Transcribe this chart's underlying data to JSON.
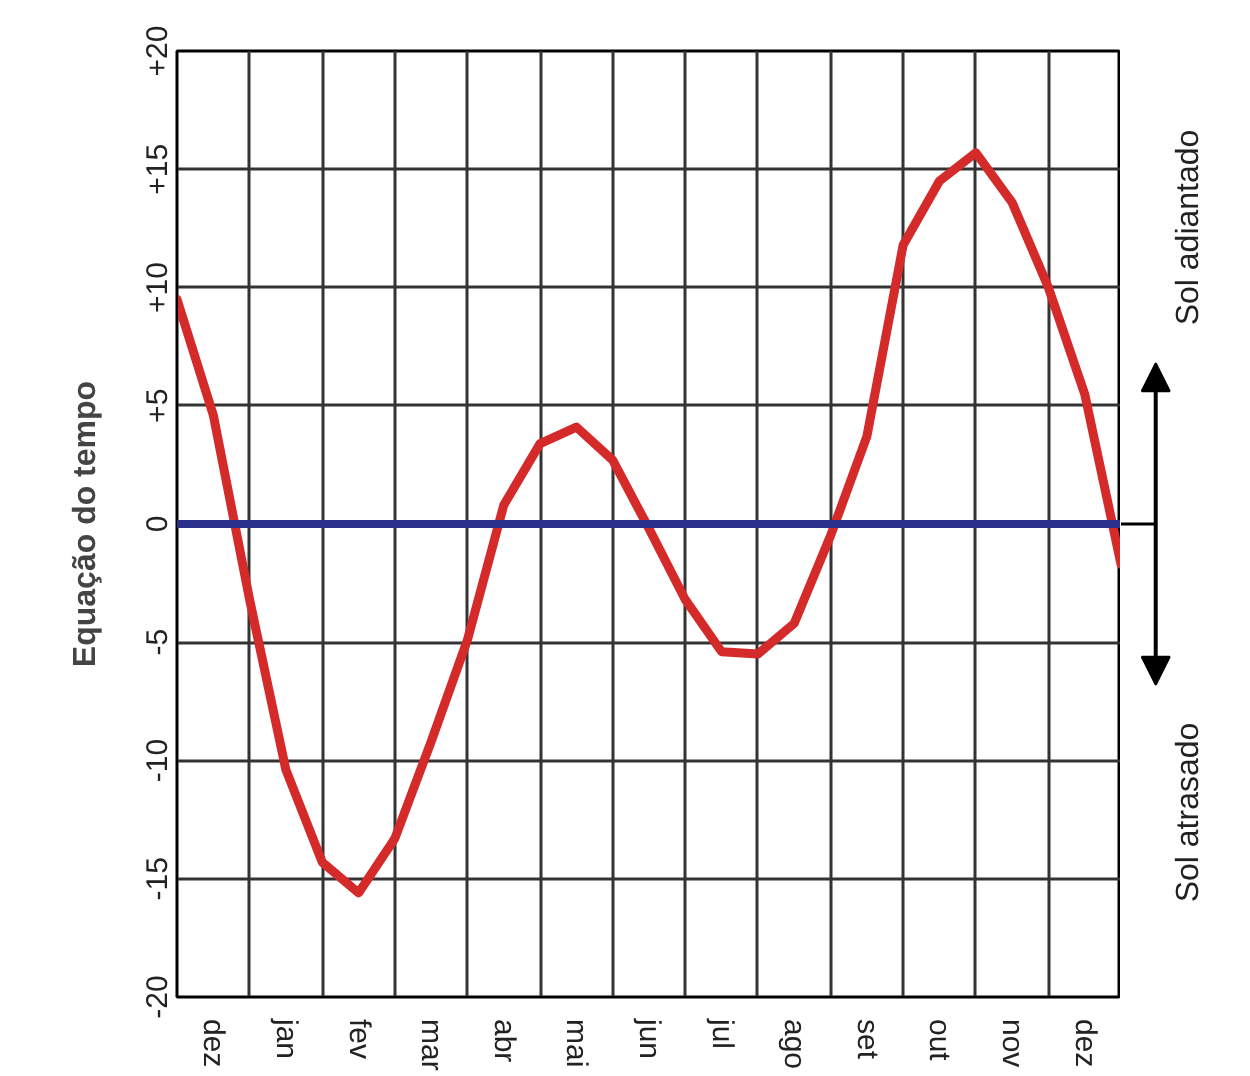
{
  "chart_data": {
    "type": "line",
    "ylabel": "Equação do tempo",
    "categories": [
      null,
      "dez",
      null,
      "jan",
      null,
      "fev",
      null,
      "mar",
      null,
      "abr",
      null,
      "mai",
      null,
      "jun",
      null,
      "jul",
      null,
      "ago",
      null,
      "set",
      null,
      "out",
      null,
      "nov",
      null,
      "dez",
      null
    ],
    "series": [
      {
        "color": "#d42a2a",
        "values": [
          9.5,
          4.6,
          -3.2,
          -10.4,
          -14.3,
          -15.6,
          -13.3,
          -9.2,
          -4.9,
          0.8,
          3.4,
          4.1,
          2.7,
          -0.2,
          -3.2,
          -5.4,
          -5.5,
          -4.2,
          -0.5,
          3.7,
          11.8,
          14.5,
          15.7,
          13.6,
          10.0,
          5.5,
          -1.7
        ]
      }
    ],
    "ylim": [
      -20,
      20
    ],
    "yticks": [
      {
        "value": -20,
        "label": "-20"
      },
      {
        "value": -15,
        "label": "-15"
      },
      {
        "value": -10,
        "label": "-10"
      },
      {
        "value": -5,
        "label": "-5"
      },
      0,
      {
        "value": 5,
        "label": "+5"
      },
      {
        "value": 10,
        "label": "+10"
      },
      {
        "value": 15,
        "label": "+15"
      },
      {
        "value": 20,
        "label": "+20"
      }
    ],
    "ref_lines": [
      {
        "axis": "y",
        "value": 0,
        "color": "#2b2f8c"
      }
    ],
    "annotations": [
      "Sol adiantado",
      "Sol atrasado"
    ],
    "grid": true,
    "line_style": "solid"
  }
}
